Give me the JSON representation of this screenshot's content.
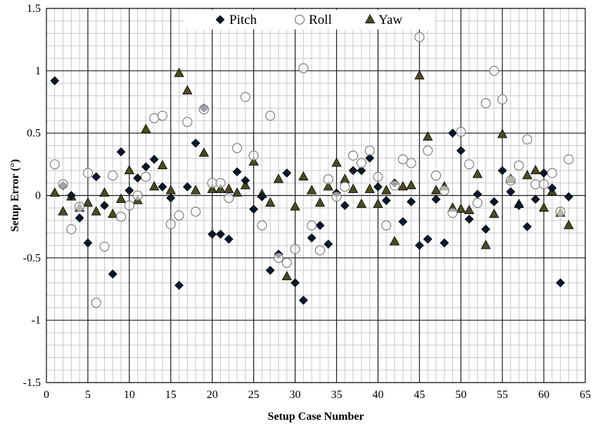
{
  "chart_data": {
    "type": "scatter",
    "title": "",
    "xlabel": "Setup Case Number",
    "ylabel": "Setup Error (°)",
    "xlim": [
      0,
      65
    ],
    "ylim": [
      -1.5,
      1.5
    ],
    "x_ticks": [
      0,
      5,
      10,
      15,
      20,
      25,
      30,
      35,
      40,
      45,
      50,
      55,
      60,
      65
    ],
    "y_ticks": [
      -1.5,
      -1,
      -0.5,
      0,
      0.5,
      1,
      1.5
    ],
    "x_tick_labels": [
      "0",
      "5",
      "10",
      "15",
      "20",
      "25",
      "30",
      "35",
      "40",
      "45",
      "50",
      "55",
      "60",
      "65"
    ],
    "y_tick_labels": [
      "-1.5",
      "-1",
      "-0.5",
      "0",
      "0.5",
      "1",
      "1.5"
    ],
    "grid": "on",
    "legend_position": "top-center",
    "x": [
      1,
      2,
      3,
      4,
      5,
      6,
      7,
      8,
      9,
      10,
      11,
      12,
      13,
      14,
      15,
      16,
      17,
      18,
      19,
      20,
      21,
      22,
      23,
      24,
      25,
      26,
      27,
      28,
      29,
      30,
      31,
      32,
      33,
      34,
      35,
      36,
      37,
      38,
      39,
      40,
      41,
      42,
      43,
      44,
      45,
      46,
      47,
      48,
      49,
      50,
      51,
      52,
      53,
      54,
      55,
      56,
      57,
      58,
      59,
      60,
      61,
      62,
      63
    ],
    "series": [
      {
        "name": "Pitch",
        "marker": "diamond",
        "color": "#0d1626",
        "values": [
          0.92,
          0.08,
          0.0,
          -0.18,
          -0.38,
          0.15,
          -0.08,
          -0.63,
          0.35,
          0.04,
          0.14,
          0.23,
          0.29,
          0.07,
          -0.02,
          -0.72,
          0.07,
          0.42,
          0.7,
          -0.31,
          -0.31,
          -0.35,
          0.19,
          0.12,
          -0.11,
          -0.01,
          -0.6,
          -0.47,
          0.18,
          -0.7,
          -0.84,
          -0.34,
          -0.24,
          -0.39,
          0.02,
          -0.08,
          0.2,
          0.2,
          0.3,
          0.07,
          -0.04,
          0.1,
          -0.21,
          -0.05,
          -0.4,
          -0.35,
          -0.03,
          -0.38,
          0.5,
          0.36,
          -0.19,
          0.01,
          -0.27,
          -0.05,
          0.2,
          0.03,
          -0.08,
          -0.25,
          -0.03,
          0.18,
          0.06,
          -0.7,
          -0.01
        ]
      },
      {
        "name": "Roll",
        "marker": "circle",
        "color": "#7f7f7f",
        "values": [
          0.25,
          0.09,
          -0.27,
          -0.09,
          0.18,
          -0.86,
          -0.41,
          0.16,
          -0.17,
          -0.08,
          0.0,
          0.15,
          0.62,
          0.64,
          -0.23,
          -0.16,
          0.59,
          -0.13,
          0.69,
          0.1,
          0.1,
          -0.02,
          0.38,
          0.79,
          0.32,
          -0.24,
          0.64,
          -0.5,
          -0.54,
          -0.43,
          1.02,
          -0.24,
          -0.44,
          0.13,
          -0.01,
          0.07,
          0.32,
          0.26,
          0.36,
          0.15,
          -0.24,
          0.08,
          0.29,
          0.26,
          1.27,
          0.36,
          0.16,
          0.04,
          -0.14,
          0.51,
          0.25,
          -0.06,
          0.74,
          1.0,
          0.77,
          0.12,
          0.24,
          0.45,
          0.09,
          0.09,
          0.18,
          -0.13,
          0.29
        ]
      },
      {
        "name": "Yaw",
        "marker": "triangle",
        "color": "#4a4a22",
        "values": [
          0.02,
          -0.13,
          -0.01,
          -0.1,
          -0.06,
          -0.13,
          0.02,
          -0.15,
          -0.03,
          0.2,
          -0.04,
          0.53,
          0.07,
          0.24,
          0.04,
          0.98,
          0.84,
          0.04,
          0.34,
          0.05,
          0.05,
          0.05,
          0.02,
          0.08,
          0.27,
          0.01,
          -0.06,
          0.13,
          -0.65,
          -0.09,
          0.15,
          0.04,
          -0.06,
          0.07,
          0.26,
          0.13,
          0.05,
          -0.07,
          0.05,
          -0.07,
          0.04,
          -0.37,
          0.07,
          0.08,
          0.96,
          0.47,
          0.04,
          0.07,
          -0.1,
          -0.11,
          -0.12,
          0.17,
          -0.4,
          -0.15,
          0.49,
          0.13,
          -0.07,
          0.16,
          0.2,
          -0.1,
          0.03,
          -0.14,
          -0.24
        ]
      }
    ]
  }
}
